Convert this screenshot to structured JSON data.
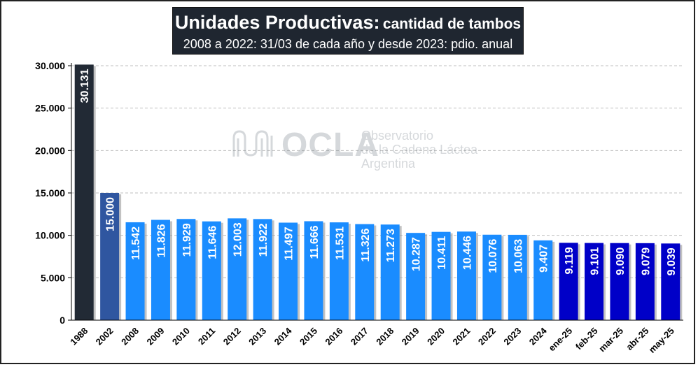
{
  "title_main": "Unidades Productivas:",
  "title_rest": "cantidad de tambos",
  "subtitle": "2008 a 2022: 31/03 de cada año y desde 2023: pdio. anual",
  "watermark": {
    "brand": "OCLA",
    "line1": "Observatorio",
    "line2": "de la Cadena Láctea",
    "line3": "Argentina"
  },
  "colors": {
    "bar_1988": "#222a35",
    "bar_2002": "#2f56a0",
    "bar_annual": "#1a8cff",
    "bar_monthly": "#0000c8",
    "grid": "#bfbfbf"
  },
  "chart_data": {
    "type": "bar",
    "title": "Unidades Productivas: cantidad de tambos",
    "subtitle": "2008 a 2022: 31/03 de cada año y desde 2023: pdio. anual",
    "categories": [
      "1988",
      "2002",
      "2008",
      "2009",
      "2010",
      "2011",
      "2012",
      "2013",
      "2014",
      "2015",
      "2016",
      "2017",
      "2018",
      "2019",
      "2020",
      "2021",
      "2022",
      "2023",
      "2024",
      "ene-25",
      "feb-25",
      "mar-25",
      "abr-25",
      "may-25"
    ],
    "values": [
      30131,
      15000,
      11542,
      11826,
      11929,
      11646,
      12003,
      11922,
      11497,
      11666,
      11531,
      11326,
      11273,
      10287,
      10411,
      10446,
      10076,
      10063,
      9407,
      9119,
      9101,
      9090,
      9079,
      9039
    ],
    "labels": [
      "30.131",
      "15.000",
      "11.542",
      "11.826",
      "11.929",
      "11.646",
      "12.003",
      "11.922",
      "11.497",
      "11.666",
      "11.531",
      "11.326",
      "11.273",
      "10.287",
      "10.411",
      "10.446",
      "10.076",
      "10.063",
      "9.407",
      "9.119",
      "9.101",
      "9.090",
      "9.079",
      "9.039"
    ],
    "groups": [
      "1988",
      "2002",
      "annual",
      "annual",
      "annual",
      "annual",
      "annual",
      "annual",
      "annual",
      "annual",
      "annual",
      "annual",
      "annual",
      "annual",
      "annual",
      "annual",
      "annual",
      "annual",
      "annual",
      "monthly",
      "monthly",
      "monthly",
      "monthly",
      "monthly"
    ],
    "yticks": [
      0,
      5000,
      10000,
      15000,
      20000,
      25000,
      30000
    ],
    "ytick_labels": [
      "0",
      "5.000",
      "10.000",
      "15.000",
      "20.000",
      "25.000",
      "30.000"
    ],
    "ylim": [
      0,
      30000
    ],
    "grid": true,
    "xlabel": "",
    "ylabel": ""
  }
}
